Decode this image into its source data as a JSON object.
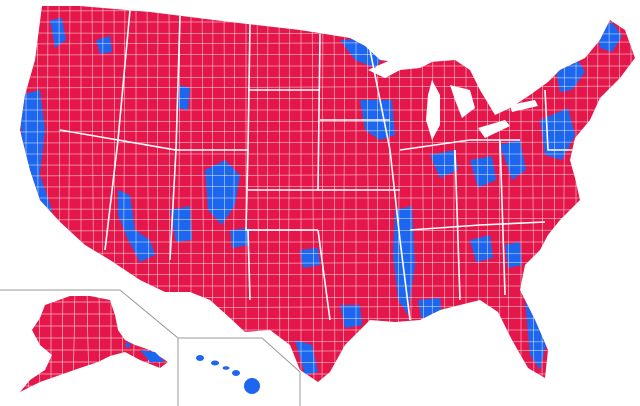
{
  "map": {
    "colors": {
      "republican": "#e5174a",
      "democratic": "#1c66f0",
      "county_border": "#ffffff",
      "inset_border": "#9a9a9a",
      "background": "#ffffff"
    },
    "regions": [
      {
        "name": "contiguous-us",
        "color_key": "republican"
      },
      {
        "name": "alaska",
        "color_key": "republican"
      },
      {
        "name": "hawaii",
        "color_key": "democratic"
      }
    ]
  }
}
